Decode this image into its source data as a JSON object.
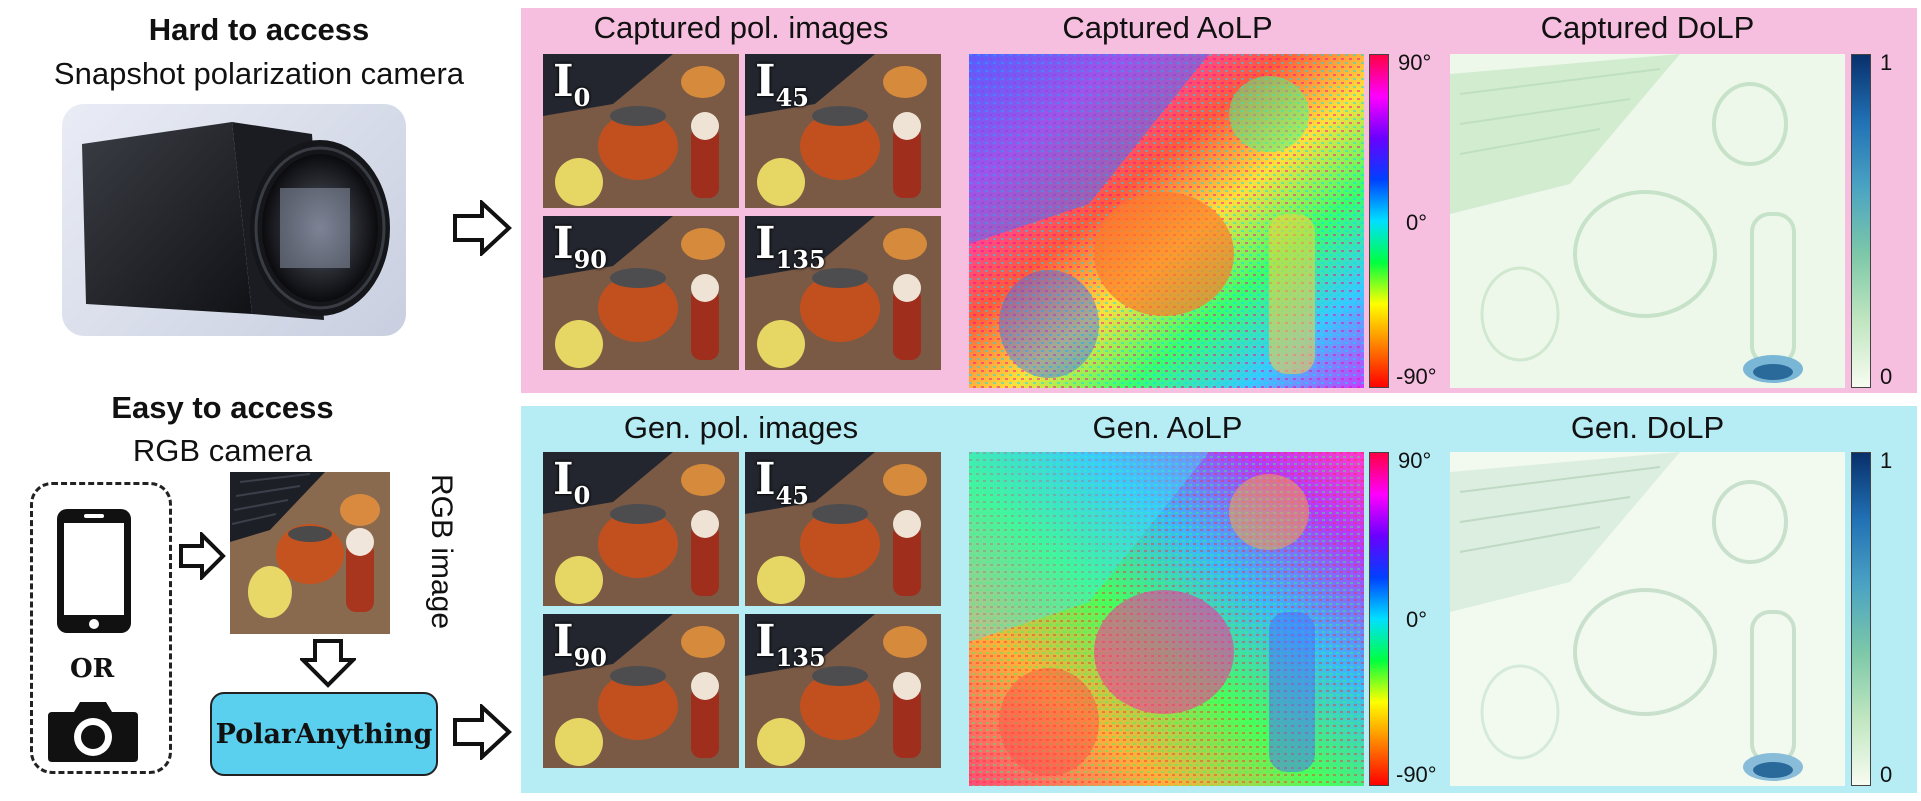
{
  "colors": {
    "top_panel": "#f7bfdf",
    "bottom_panel": "#b6edf5",
    "button": "#5bd0ee"
  },
  "left_top": {
    "heading": "Hard to access",
    "subheading": "Snapshot polarization camera"
  },
  "left_bottom": {
    "heading": "Easy to access",
    "subheading": "RGB camera",
    "rgb_caption": "RGB image",
    "or_label": "OR",
    "button_label": "PolarAnything"
  },
  "top_row": {
    "pol_title": "Captured pol. images",
    "aolp_title": "Captured AoLP",
    "dolp_title": "Captured DoLP"
  },
  "bottom_row": {
    "pol_title": "Gen. pol. images",
    "aolp_title": "Gen. AoLP",
    "dolp_title": "Gen. DoLP"
  },
  "pol_labels": [
    {
      "base": "I",
      "sub": "0"
    },
    {
      "base": "I",
      "sub": "45"
    },
    {
      "base": "I",
      "sub": "90"
    },
    {
      "base": "I",
      "sub": "135"
    }
  ],
  "aolp_colorbar": {
    "top": "90°",
    "mid": "0°",
    "bottom": "-90°"
  },
  "dolp_colorbar": {
    "top": "1",
    "bottom": "0"
  },
  "icons": [
    "camera-body-icon",
    "smartphone-icon",
    "photo-camera-icon",
    "arrow-right-icon",
    "arrow-down-icon"
  ]
}
